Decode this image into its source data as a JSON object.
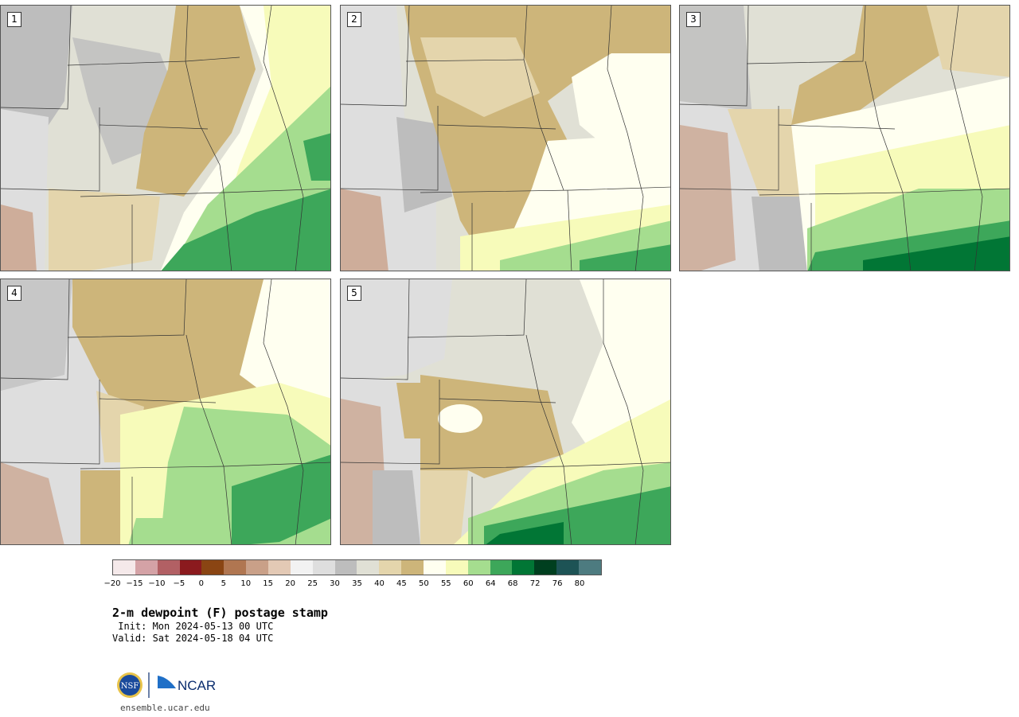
{
  "panels": [
    {
      "id": "p1",
      "label": "1"
    },
    {
      "id": "p2",
      "label": "2"
    },
    {
      "id": "p3",
      "label": "3"
    },
    {
      "id": "p4",
      "label": "4"
    },
    {
      "id": "p5",
      "label": "5"
    }
  ],
  "colorbar": {
    "colors": [
      "#f5e9ea",
      "#d4a2a6",
      "#b26064",
      "#8b1a1e",
      "#8a4513",
      "#b07651",
      "#c9a088",
      "#e3c9b5",
      "#f2f2f2",
      "#dedede",
      "#bdbdbd",
      "#e0e0d5",
      "#e4d5ac",
      "#cdb57a",
      "#fffff0",
      "#f7fbba",
      "#a5dd8f",
      "#3da75a",
      "#017635",
      "#003f1f",
      "#1d5355",
      "#4d7b80"
    ],
    "ticks": [
      "−20",
      "−15",
      "−10",
      "−5",
      "0",
      "5",
      "10",
      "15",
      "20",
      "25",
      "30",
      "35",
      "40",
      "45",
      "50",
      "55",
      "60",
      "64",
      "68",
      "72",
      "76",
      "80"
    ]
  },
  "title": "2-m dewpoint (F) postage stamp",
  "init": " Init: Mon 2024-05-13 00 UTC",
  "valid": "Valid: Sat 2024-05-18 04 UTC",
  "site": "ensemble.ucar.edu",
  "logo": {
    "nsf_text": "NSF",
    "ncar_text": "NCAR",
    "nsf_color": "#1a4a9b",
    "ncar_color": "#0a2d6e"
  }
}
